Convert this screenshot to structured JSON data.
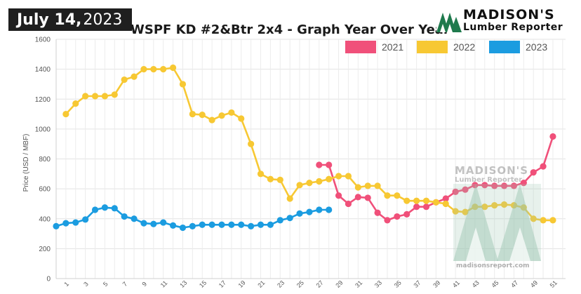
{
  "header": {
    "date_month_day": "July 14,",
    "date_year": "2023",
    "title": "WSPF KD #2&Btr 2x4 - Graph Year Over Year"
  },
  "brand": {
    "name": "MADISON'S",
    "sub": "Lumber Reporter",
    "url": "madisonsreport.com",
    "color": "#1f7a4d"
  },
  "chart_data": {
    "type": "line",
    "title": "WSPF KD #2&Btr 2x4 - Graph Year Over Year",
    "xlabel": "",
    "ylabel": "Price (USD / MBF)",
    "ylim": [
      0,
      1600
    ],
    "yticks": [
      0,
      200,
      400,
      600,
      800,
      1000,
      1200,
      1400,
      1600
    ],
    "xticks": [
      1,
      3,
      5,
      7,
      9,
      11,
      13,
      15,
      17,
      19,
      21,
      23,
      25,
      27,
      29,
      31,
      33,
      35,
      37,
      39,
      41,
      43,
      45,
      47,
      49,
      51
    ],
    "x_range": [
      1,
      52
    ],
    "grid": true,
    "legend_position": "top-right",
    "series": [
      {
        "name": "2021",
        "color": "#f0507a",
        "x": [
          27,
          28,
          29,
          30,
          31,
          32,
          33,
          34,
          35,
          36,
          37,
          38,
          39,
          40,
          41,
          42,
          43,
          44,
          45,
          46,
          47,
          48,
          49,
          50,
          51
        ],
        "values": [
          760,
          760,
          555,
          500,
          545,
          540,
          440,
          390,
          415,
          430,
          480,
          480,
          510,
          535,
          580,
          595,
          625,
          625,
          620,
          620,
          620,
          640,
          710,
          750,
          950
        ]
      },
      {
        "name": "2022",
        "color": "#f7c833",
        "x": [
          1,
          2,
          3,
          4,
          5,
          6,
          7,
          8,
          9,
          10,
          11,
          12,
          13,
          14,
          15,
          16,
          17,
          18,
          19,
          20,
          21,
          22,
          23,
          24,
          25,
          26,
          27,
          28,
          29,
          30,
          31,
          32,
          33,
          34,
          35,
          36,
          37,
          38,
          39,
          40,
          41,
          42,
          43,
          44,
          45,
          46,
          47,
          48,
          49,
          50,
          51
        ],
        "values": [
          1100,
          1170,
          1220,
          1220,
          1220,
          1230,
          1330,
          1350,
          1400,
          1400,
          1400,
          1410,
          1300,
          1100,
          1095,
          1060,
          1090,
          1110,
          1070,
          900,
          700,
          665,
          660,
          535,
          625,
          640,
          650,
          665,
          685,
          685,
          610,
          620,
          620,
          555,
          555,
          520,
          520,
          520,
          510,
          500,
          450,
          445,
          480,
          480,
          490,
          495,
          490,
          475,
          400,
          390,
          390
        ]
      },
      {
        "name": "2023",
        "color": "#1b9ce0",
        "x": [
          0,
          1,
          2,
          3,
          4,
          5,
          6,
          7,
          8,
          9,
          10,
          11,
          12,
          13,
          14,
          15,
          16,
          17,
          18,
          19,
          20,
          21,
          22,
          23,
          24,
          25,
          26,
          27,
          28
        ],
        "values": [
          350,
          370,
          375,
          395,
          460,
          475,
          470,
          415,
          400,
          370,
          365,
          375,
          355,
          340,
          350,
          360,
          360,
          360,
          360,
          360,
          350,
          360,
          360,
          390,
          405,
          435,
          445,
          460,
          460
        ]
      }
    ]
  }
}
